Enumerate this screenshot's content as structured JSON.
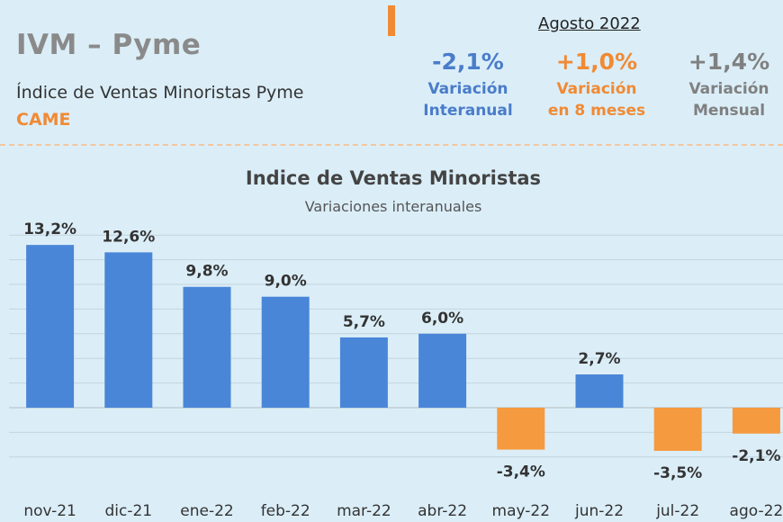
{
  "header": {
    "title": "IVM  –  Pyme",
    "subtitle": "Índice de Ventas Minoristas Pyme",
    "org": "CAME",
    "period": "Agosto 2022",
    "stats": [
      {
        "value": "-2,1%",
        "label_line1": "Variación",
        "label_line2": "Interanual",
        "color": "#4a7cc9"
      },
      {
        "value": "+1,0%",
        "label_line1": "Variación",
        "label_line2": "en 8 meses",
        "color": "#f08a34"
      },
      {
        "value": "+1,4%",
        "label_line1": "Variación",
        "label_line2": "Mensual",
        "color": "#808080"
      }
    ]
  },
  "chart_data": {
    "type": "bar",
    "title": "Indice de Ventas Minoristas",
    "subtitle": "Variaciones interanuales",
    "categories": [
      "nov-21",
      "dic-21",
      "ene-22",
      "feb-22",
      "mar-22",
      "abr-22",
      "may-22",
      "jun-22",
      "jul-22",
      "ago-22"
    ],
    "values": [
      13.2,
      12.6,
      9.8,
      9.0,
      5.7,
      6.0,
      -3.4,
      2.7,
      -3.5,
      -2.1
    ],
    "value_labels": [
      "13,2%",
      "12,6%",
      "9,8%",
      "9,0%",
      "5,7%",
      "6,0%",
      "-3,4%",
      "2,7%",
      "-3,5%",
      "-2,1%"
    ],
    "ylim": [
      -4,
      14
    ],
    "grid": true,
    "colors": {
      "positive": "#4a86d8",
      "negative": "#f59a3f",
      "grid": "#c3d4dc"
    }
  }
}
